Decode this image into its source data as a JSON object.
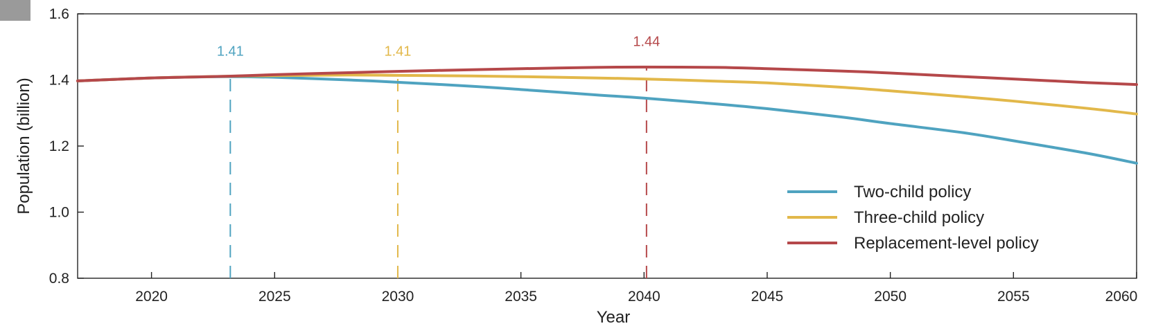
{
  "chart_data": {
    "type": "line",
    "xlabel": "Year",
    "ylabel": "Population (billion)",
    "xlim": [
      2017,
      2060
    ],
    "ylim": [
      0.8,
      1.6
    ],
    "xticks": [
      "2020",
      "2025",
      "2030",
      "2035",
      "2040",
      "2045",
      "2050",
      "2055",
      "2060"
    ],
    "yticks": [
      "0.8",
      "1.0",
      "1.2",
      "1.4",
      "1.6"
    ],
    "grid": false,
    "legend_position": "bottom-right",
    "x": [
      2017,
      2020,
      2023,
      2025,
      2028,
      2030,
      2033,
      2035,
      2038,
      2040,
      2043,
      2045,
      2048,
      2050,
      2053,
      2055,
      2058,
      2060
    ],
    "series": [
      {
        "name": "Two-child policy",
        "color": "#4fa3c0",
        "values": [
          1.397,
          1.406,
          1.41,
          1.408,
          1.4,
          1.393,
          1.381,
          1.371,
          1.355,
          1.345,
          1.327,
          1.313,
          1.288,
          1.268,
          1.24,
          1.216,
          1.178,
          1.148
        ]
      },
      {
        "name": "Three-child policy",
        "color": "#e2b84a",
        "values": [
          1.397,
          1.406,
          1.411,
          1.413,
          1.415,
          1.414,
          1.412,
          1.41,
          1.406,
          1.403,
          1.396,
          1.391,
          1.378,
          1.367,
          1.349,
          1.336,
          1.314,
          1.297
        ]
      },
      {
        "name": "Replacement-level policy",
        "color": "#b5484a",
        "values": [
          1.397,
          1.406,
          1.411,
          1.416,
          1.422,
          1.426,
          1.431,
          1.434,
          1.438,
          1.439,
          1.438,
          1.434,
          1.427,
          1.421,
          1.41,
          1.403,
          1.392,
          1.386
        ]
      }
    ],
    "peaks": [
      {
        "series": "Two-child policy",
        "year": 2023.2,
        "value": 1.41,
        "label": "1.41",
        "color": "#4fa3c0"
      },
      {
        "series": "Three-child policy",
        "year": 2030,
        "value": 1.41,
        "label": "1.41",
        "color": "#e2b84a"
      },
      {
        "series": "Replacement-level policy",
        "year": 2040.1,
        "value": 1.44,
        "label": "1.44",
        "color": "#b5484a"
      }
    ]
  }
}
